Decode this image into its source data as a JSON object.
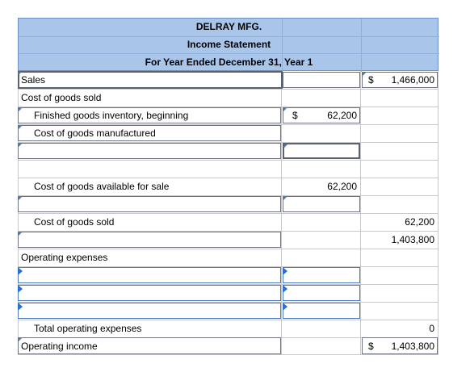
{
  "header": {
    "company": "DELRAY MFG.",
    "statement": "Income Statement",
    "period": "For Year Ended December 31, Year 1"
  },
  "rows": {
    "sales": {
      "label": "Sales",
      "currency": "$",
      "amount": "1,466,000"
    },
    "cogs_heading": {
      "label": "Cost of goods sold"
    },
    "fg_beginning": {
      "label": "Finished goods inventory, beginning",
      "currency": "$",
      "amount": "62,200"
    },
    "cogm": {
      "label": "Cost of goods manufactured"
    },
    "available": {
      "label": "Cost of goods available for sale",
      "amount": "62,200"
    },
    "cogs": {
      "label": "Cost of goods sold",
      "amount": "62,200"
    },
    "gross_profit": {
      "amount": "1,403,800"
    },
    "opex_heading": {
      "label": "Operating expenses"
    },
    "total_opex": {
      "label": "Total operating expenses",
      "amount": "0"
    },
    "operating_income": {
      "label": "Operating income",
      "currency": "$",
      "amount": "1,403,800"
    }
  },
  "colors": {
    "header_bg": "#a9c6ea",
    "input_flag": "#2b6fd6"
  }
}
